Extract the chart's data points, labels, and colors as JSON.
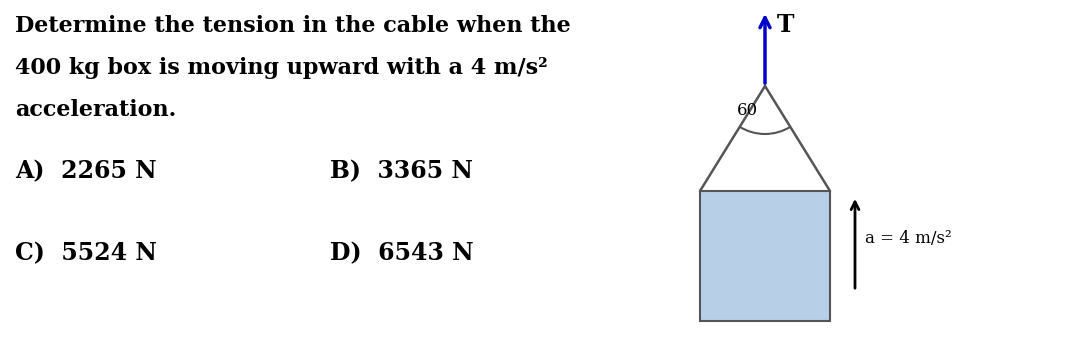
{
  "bg_color": "#ffffff",
  "text_color": "#000000",
  "question_line1": "Determine the tension in the cable when the",
  "question_line2": "400 kg box is moving upward with a 4 m/s²",
  "question_line3": "acceleration.",
  "option_A": "A)  2265 N",
  "option_B": "B)  3365 N",
  "option_C": "C)  5524 N",
  "option_D": "D)  6543 N",
  "T_label": "T",
  "angle_label": "60",
  "accel_label": "a = 4 m/s²",
  "box_color": "#b8cfe8",
  "box_edge_color": "#555555",
  "arrow_T_color": "#0000cc",
  "arrow_a_color": "#000000",
  "cable_color": "#555555",
  "fig_width": 10.8,
  "fig_height": 3.51,
  "dpi": 100,
  "text_fontsize": 16,
  "option_fontsize": 17,
  "font_family": "serif"
}
